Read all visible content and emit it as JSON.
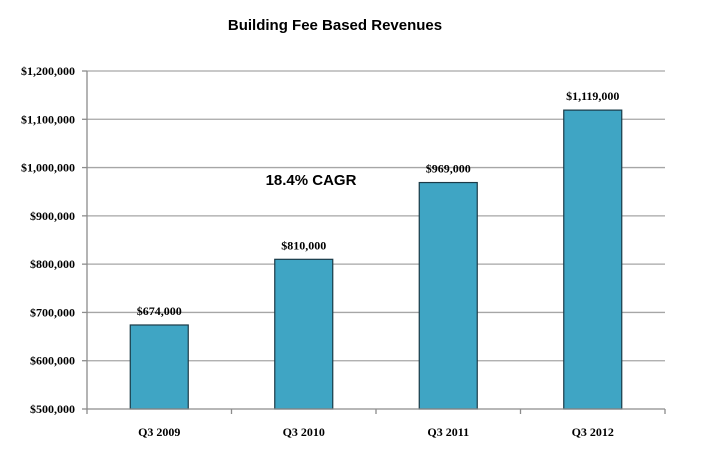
{
  "chart_data": {
    "type": "bar",
    "title": "Building Fee Based Revenues",
    "xlabel": "",
    "ylabel": "",
    "categories": [
      "Q3 2009",
      "Q3 2010",
      "Q3 2011",
      "Q3 2012"
    ],
    "values": [
      674000,
      810000,
      969000,
      1119000
    ],
    "data_labels": [
      "$674,000",
      "$810,000",
      "$969,000",
      "$1,119,000"
    ],
    "ylim": [
      500000,
      1200000
    ],
    "yticks": [
      500000,
      600000,
      700000,
      800000,
      900000,
      1000000,
      1100000,
      1200000
    ],
    "ytick_labels": [
      "$500,000",
      "$600,000",
      "$700,000",
      "$800,000",
      "$900,000",
      "$1,000,000",
      "$1,100,000",
      "$1,200,000"
    ],
    "grid": true,
    "legend": "none",
    "annotation": "18.4% CAGR",
    "bar_color": "#3fa5c4",
    "bar_edge_color": "#1b3a47"
  }
}
